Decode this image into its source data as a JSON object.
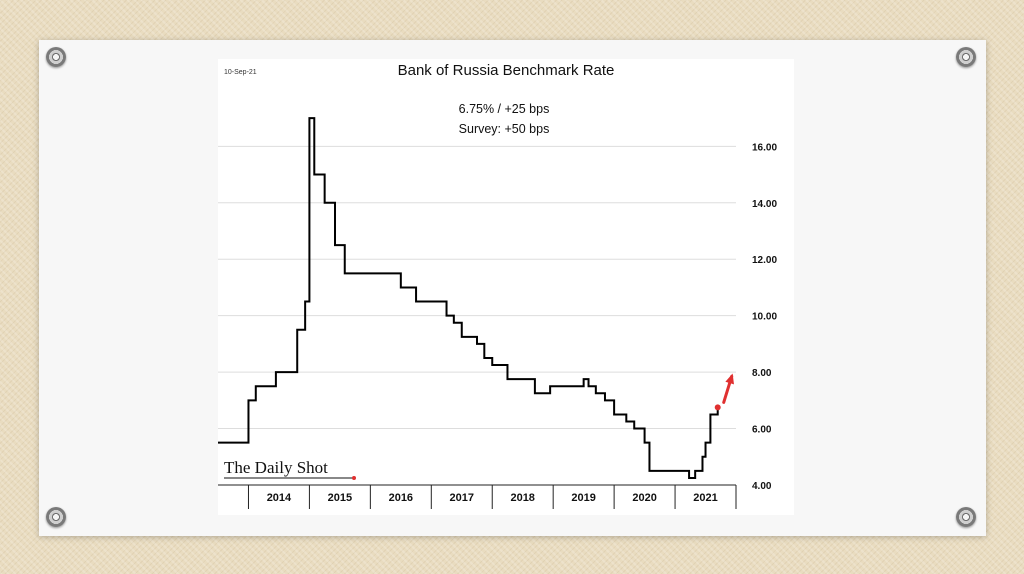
{
  "chart_data": {
    "type": "line",
    "line_shape": "step",
    "date_stamp": "10-Sep-21",
    "title": "Bank of Russia Benchmark Rate",
    "annotations": [
      "6.75%  /  +25 bps",
      "Survey: +50 bps"
    ],
    "logo": "The Daily Shot",
    "xlabel": "",
    "ylabel": "",
    "xlim": [
      2013.5,
      2022.0
    ],
    "ylim": [
      4.0,
      17.5
    ],
    "y_ticks": [
      16.0,
      14.0,
      12.0,
      10.0,
      8.0,
      6.0,
      4.0
    ],
    "y_tick_labels": [
      "16.00",
      "14.00",
      "12.00",
      "10.00",
      "8.00",
      "6.00",
      "4.00"
    ],
    "y_axis_side": "right",
    "x_category_labels": [
      "2014",
      "2015",
      "2016",
      "2017",
      "2018",
      "2019",
      "2020",
      "2021"
    ],
    "grid": true,
    "legend": "none",
    "series": [
      {
        "x": [
          2013.5,
          2014.0,
          2014.12,
          2014.22,
          2014.45,
          2014.65,
          2014.8,
          2014.93,
          2015.0,
          2015.08,
          2015.25,
          2015.42,
          2015.58,
          2016.5,
          2016.75,
          2017.25,
          2017.37,
          2017.5,
          2017.75,
          2017.87,
          2018.0,
          2018.25,
          2018.7,
          2018.95,
          2019.5,
          2019.58,
          2019.7,
          2019.85,
          2020.0,
          2020.2,
          2020.33,
          2020.5,
          2020.58,
          2021.23,
          2021.33,
          2021.45,
          2021.5,
          2021.58,
          2021.7
        ],
        "y": [
          5.5,
          7.0,
          7.5,
          7.5,
          8.0,
          8.0,
          9.5,
          10.5,
          17.0,
          15.0,
          14.0,
          12.5,
          11.5,
          11.0,
          10.5,
          10.0,
          9.75,
          9.25,
          9.0,
          8.5,
          8.25,
          7.75,
          7.25,
          7.5,
          7.75,
          7.5,
          7.25,
          7.0,
          6.5,
          6.25,
          6.0,
          5.5,
          4.5,
          4.25,
          4.5,
          5.0,
          5.5,
          6.5,
          6.75
        ]
      }
    ],
    "highlight_point": {
      "x": 2021.7,
      "y": 6.75
    },
    "arrow_target": {
      "x": 2021.93,
      "y": 7.85
    },
    "colors": {
      "line": "#000000",
      "highlight": "#e03030",
      "grid": "#dddddd",
      "axis": "#222222"
    }
  }
}
